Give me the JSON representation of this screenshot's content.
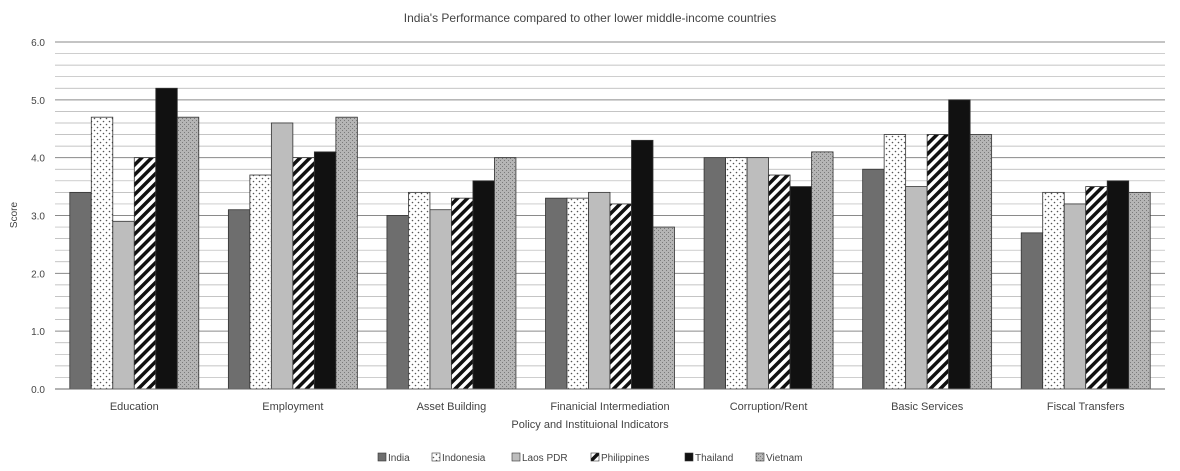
{
  "chart_data": {
    "type": "bar",
    "title": "India's Performance compared to other lower middle-income countries",
    "xlabel": "Policy and Instituional Indicators",
    "ylabel": "Score",
    "ylim": [
      0,
      6
    ],
    "yticks": [
      "0.0",
      "1.0",
      "2.0",
      "3.0",
      "4.0",
      "5.0",
      "6.0"
    ],
    "grid": true,
    "legend_position": "bottom",
    "categories": [
      "Education",
      "Employment",
      "Asset Building",
      "Finanicial Intermediation",
      "Corruption/Rent",
      "Basic Services",
      "Fiscal Transfers"
    ],
    "series": [
      {
        "name": "India",
        "values": [
          3.4,
          3.1,
          3.0,
          3.3,
          4.0,
          3.8,
          2.7
        ],
        "color": "#6e6e6e",
        "pattern": "solid"
      },
      {
        "name": "Indonesia",
        "values": [
          4.7,
          3.7,
          3.4,
          3.3,
          4.0,
          4.4,
          3.4
        ],
        "color": "#ffffff",
        "pattern": "dots"
      },
      {
        "name": "Laos PDR",
        "values": [
          2.9,
          4.6,
          3.1,
          3.4,
          4.0,
          3.5,
          3.2
        ],
        "color": "#bdbdbd",
        "pattern": "solid"
      },
      {
        "name": "Philippines",
        "values": [
          4.0,
          4.0,
          3.3,
          3.2,
          3.7,
          4.4,
          3.5
        ],
        "color": "#ffffff",
        "pattern": "diagonal"
      },
      {
        "name": "Thailand",
        "values": [
          5.2,
          4.1,
          3.6,
          4.3,
          3.5,
          5.0,
          3.6
        ],
        "color": "#111111",
        "pattern": "solid"
      },
      {
        "name": "Vietnam",
        "values": [
          4.7,
          4.7,
          4.0,
          2.8,
          4.1,
          4.4,
          3.4
        ],
        "color": "#a8a8a8",
        "pattern": "speckle"
      }
    ]
  }
}
